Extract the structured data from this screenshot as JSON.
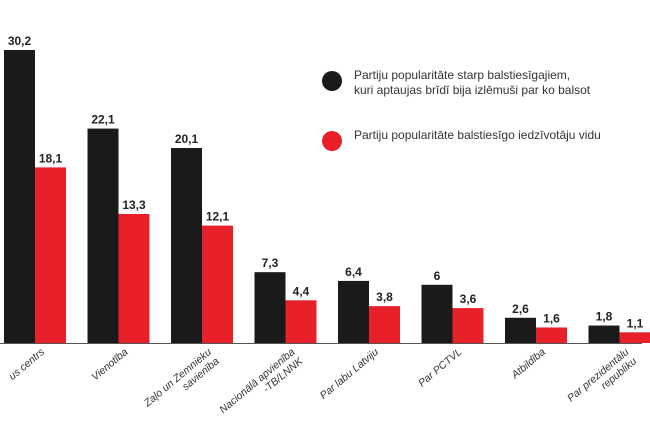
{
  "colors": {
    "series1": "#1a1a1a",
    "series2": "#e8202a",
    "baseline": "#555555"
  },
  "chart_data": {
    "type": "bar",
    "categories": [
      "Saskaņas centrs",
      "Vienotība",
      "Zaļo un Zemnieku savienība",
      "Nacionālā apvienība -TB/LNNK",
      "Par labu Latviju",
      "Par PCTVL",
      "Atbildība",
      "Par prezidentālu republiku"
    ],
    "category_display": [
      "us centrs",
      "Vienotība",
      "Zaļo un Zemnieku\nsavienība",
      "Nacionālā apvienība\n-TB/LNNK",
      "Par labu Latviju",
      "Par PCTVL",
      "Atbildība",
      "Par prezidentālu\nrepubliku"
    ],
    "series": [
      {
        "name": "Partiju popularitāte starp balstiesīgajiem,\nkuri aptaujas brīdī bija izlēmuši par ko balsot",
        "values": [
          30.2,
          22.1,
          20.1,
          7.3,
          6.4,
          6,
          2.6,
          1.8
        ]
      },
      {
        "name": "Partiju popularitāte balstiesīgo iedzīvotāju vidu",
        "values": [
          18.1,
          13.3,
          12.1,
          4.4,
          3.8,
          3.6,
          1.6,
          1.1
        ]
      }
    ],
    "value_labels": [
      [
        "30,2",
        "22,1",
        "20,1",
        "7,3",
        "6,4",
        "6",
        "2,6",
        "1,8"
      ],
      [
        "18,1",
        "13,3",
        "12,1",
        "4,4",
        "3,8",
        "3,6",
        "1,6",
        "1,1"
      ]
    ],
    "ylim": [
      0,
      30.2
    ],
    "grid": false,
    "legend_position": "top-right"
  }
}
